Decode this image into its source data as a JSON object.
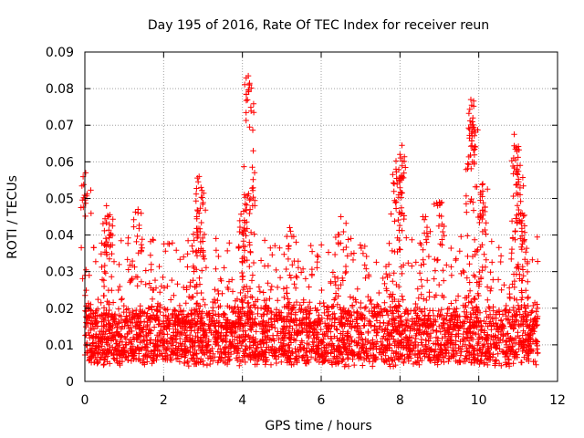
{
  "chart_data": {
    "type": "scatter",
    "title": "Day 195 of 2016, Rate Of TEC Index for receiver reun",
    "xlabel": "GPS time / hours",
    "ylabel": "ROTI / TECUs",
    "xlim": [
      0,
      12
    ],
    "ylim": [
      0,
      0.09
    ],
    "x_ticks": [
      0,
      2,
      4,
      6,
      8,
      10,
      12
    ],
    "y_ticks": [
      0,
      0.01,
      0.02,
      0.03,
      0.04,
      0.05,
      0.06,
      0.07,
      0.08,
      0.09
    ],
    "x_tick_labels": [
      "0",
      "2",
      "4",
      "6",
      "8",
      "10",
      "12"
    ],
    "y_tick_labels": [
      "0",
      "0.01",
      "0.02",
      "0.03",
      "0.04",
      "0.05",
      "0.06",
      "0.07",
      "0.08",
      "0.09"
    ],
    "grid": true,
    "marker": "+",
    "color": "#ff0000",
    "data_x_range": [
      0,
      11.5
    ],
    "baseline_band": [
      0.006,
      0.02
    ],
    "notable_points": [
      {
        "x": 0.02,
        "y": 0.057
      },
      {
        "x": 0.55,
        "y": 0.048
      },
      {
        "x": 0.6,
        "y": 0.045
      },
      {
        "x": 1.35,
        "y": 0.047
      },
      {
        "x": 2.9,
        "y": 0.056
      },
      {
        "x": 2.95,
        "y": 0.053
      },
      {
        "x": 2.9,
        "y": 0.046
      },
      {
        "x": 4.05,
        "y": 0.051
      },
      {
        "x": 4.15,
        "y": 0.0835
      },
      {
        "x": 4.18,
        "y": 0.081
      },
      {
        "x": 4.25,
        "y": 0.0585
      },
      {
        "x": 4.05,
        "y": 0.044
      },
      {
        "x": 5.2,
        "y": 0.042
      },
      {
        "x": 6.5,
        "y": 0.045
      },
      {
        "x": 7.9,
        "y": 0.058
      },
      {
        "x": 8.05,
        "y": 0.0645
      },
      {
        "x": 8.0,
        "y": 0.062
      },
      {
        "x": 8.0,
        "y": 0.055
      },
      {
        "x": 8.65,
        "y": 0.045
      },
      {
        "x": 9.0,
        "y": 0.049
      },
      {
        "x": 9.8,
        "y": 0.077
      },
      {
        "x": 9.82,
        "y": 0.0755
      },
      {
        "x": 9.85,
        "y": 0.072
      },
      {
        "x": 9.85,
        "y": 0.0695
      },
      {
        "x": 10.1,
        "y": 0.054
      },
      {
        "x": 10.1,
        "y": 0.052
      },
      {
        "x": 10.9,
        "y": 0.0675
      },
      {
        "x": 10.95,
        "y": 0.064
      },
      {
        "x": 11.05,
        "y": 0.059
      },
      {
        "x": 11.05,
        "y": 0.051
      },
      {
        "x": 11.1,
        "y": 0.046
      }
    ]
  }
}
